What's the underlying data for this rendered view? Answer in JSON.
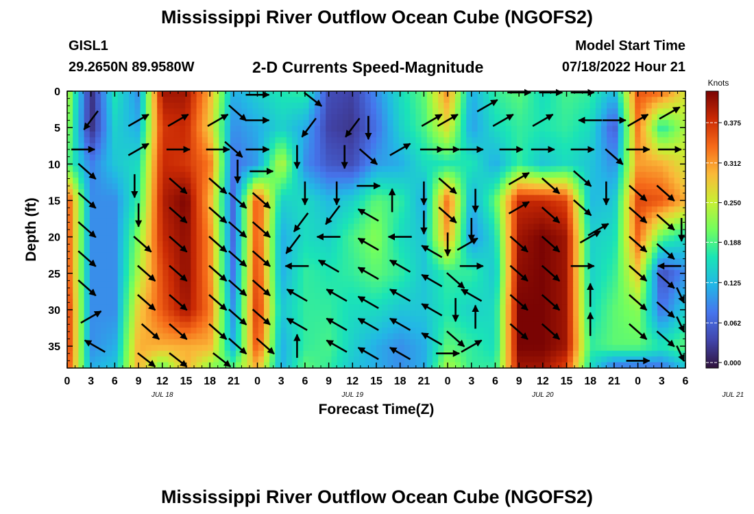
{
  "chart_data": {
    "type": "heatmap",
    "title": "Mississippi River Outflow Ocean Cube (NGOFS2)",
    "subtitle": "2-D Currents Speed-Magnitude",
    "station": "GISL1",
    "location": "29.2650N  89.9580W",
    "model_start_label": "Model Start Time",
    "model_start_value": "07/18/2022 Hour 21",
    "xlabel": "Forecast Time(Z)",
    "ylabel": "Depth (ft)",
    "x_tick_labels": [
      "0",
      "3",
      "6",
      "9",
      "12",
      "15",
      "18",
      "21",
      "0",
      "3",
      "6",
      "9",
      "12",
      "15",
      "18",
      "21",
      "0",
      "3",
      "6",
      "9",
      "12",
      "15",
      "18",
      "21",
      "0",
      "3",
      "6"
    ],
    "date_labels": [
      {
        "label": "JUL 18",
        "hour": 12
      },
      {
        "label": "JUL 19",
        "hour": 36
      },
      {
        "label": "JUL 20",
        "hour": 60
      },
      {
        "label": "JUL 21",
        "hour": 84
      }
    ],
    "xlim": [
      0,
      78
    ],
    "ylim": [
      0,
      38
    ],
    "y_reversed": true,
    "y_ticks": [
      0,
      5,
      10,
      15,
      20,
      25,
      30,
      35
    ],
    "colorbar": {
      "title": "Knots",
      "ticks": [
        "0.000",
        "0.062",
        "0.125",
        "0.188",
        "0.250",
        "0.312",
        "0.375"
      ],
      "range": [
        0,
        0.42
      ]
    },
    "speed_grid": {
      "hours": [
        0,
        3,
        6,
        9,
        12,
        15,
        18,
        21,
        24,
        27,
        30,
        33,
        36,
        39,
        42,
        45,
        48,
        51,
        54,
        57,
        60,
        63,
        66,
        69,
        72,
        75,
        78
      ],
      "depths": [
        0,
        5,
        10,
        15,
        20,
        25,
        30,
        35,
        38
      ],
      "values": [
        [
          0.25,
          0.02,
          0.17,
          0.1,
          0.4,
          0.4,
          0.3,
          0.12,
          0.15,
          0.17,
          0.18,
          0.05,
          0.04,
          0.1,
          0.16,
          0.2,
          0.32,
          0.12,
          0.18,
          0.2,
          0.16,
          0.19,
          0.18,
          0.13,
          0.35,
          0.34,
          0.26
        ],
        [
          0.23,
          0.02,
          0.15,
          0.12,
          0.37,
          0.38,
          0.28,
          0.1,
          0.12,
          0.15,
          0.12,
          0.04,
          0.03,
          0.08,
          0.15,
          0.19,
          0.27,
          0.11,
          0.16,
          0.18,
          0.17,
          0.18,
          0.16,
          0.06,
          0.33,
          0.17,
          0.24
        ],
        [
          0.2,
          0.09,
          0.14,
          0.16,
          0.38,
          0.37,
          0.33,
          0.08,
          0.11,
          0.25,
          0.1,
          0.06,
          0.05,
          0.11,
          0.12,
          0.16,
          0.17,
          0.17,
          0.12,
          0.18,
          0.14,
          0.16,
          0.14,
          0.1,
          0.31,
          0.3,
          0.26
        ],
        [
          0.36,
          0.1,
          0.1,
          0.18,
          0.39,
          0.42,
          0.3,
          0.07,
          0.36,
          0.15,
          0.16,
          0.13,
          0.15,
          0.2,
          0.18,
          0.12,
          0.34,
          0.12,
          0.2,
          0.38,
          0.38,
          0.36,
          0.13,
          0.14,
          0.36,
          0.35,
          0.3
        ],
        [
          0.36,
          0.1,
          0.1,
          0.22,
          0.38,
          0.41,
          0.32,
          0.07,
          0.36,
          0.12,
          0.16,
          0.15,
          0.19,
          0.22,
          0.16,
          0.14,
          0.31,
          0.1,
          0.16,
          0.4,
          0.42,
          0.4,
          0.15,
          0.16,
          0.34,
          0.2,
          0.16
        ],
        [
          0.36,
          0.1,
          0.1,
          0.24,
          0.36,
          0.41,
          0.32,
          0.08,
          0.37,
          0.12,
          0.18,
          0.17,
          0.18,
          0.2,
          0.18,
          0.14,
          0.18,
          0.18,
          0.14,
          0.41,
          0.42,
          0.4,
          0.15,
          0.18,
          0.28,
          0.05,
          0.1
        ],
        [
          0.38,
          0.1,
          0.1,
          0.28,
          0.35,
          0.4,
          0.33,
          0.1,
          0.38,
          0.14,
          0.18,
          0.18,
          0.16,
          0.16,
          0.14,
          0.14,
          0.17,
          0.15,
          0.16,
          0.42,
          0.42,
          0.4,
          0.16,
          0.2,
          0.22,
          0.08,
          0.15
        ],
        [
          0.38,
          0.1,
          0.12,
          0.3,
          0.3,
          0.3,
          0.3,
          0.12,
          0.36,
          0.12,
          0.18,
          0.19,
          0.15,
          0.12,
          0.1,
          0.12,
          0.2,
          0.18,
          0.16,
          0.42,
          0.42,
          0.4,
          0.18,
          0.2,
          0.2,
          0.17,
          0.2
        ],
        [
          0.36,
          0.12,
          0.14,
          0.3,
          0.2,
          0.3,
          0.22,
          0.2,
          0.3,
          0.12,
          0.2,
          0.18,
          0.14,
          0.12,
          0.1,
          0.12,
          0.24,
          0.18,
          0.18,
          0.4,
          0.4,
          0.36,
          0.16,
          0.08,
          0.08,
          0.08,
          0.14
        ]
      ]
    },
    "arrows": [
      {
        "h": 2,
        "d": 8,
        "dir": "E"
      },
      {
        "h": 3,
        "d": 4,
        "dir": "SW"
      },
      {
        "h": 2.5,
        "d": 11,
        "dir": "SE"
      },
      {
        "h": 2.5,
        "d": 15,
        "dir": "SE"
      },
      {
        "h": 2.5,
        "d": 19,
        "dir": "SE"
      },
      {
        "h": 2.5,
        "d": 23,
        "dir": "SE"
      },
      {
        "h": 2.5,
        "d": 27,
        "dir": "SE"
      },
      {
        "h": 3,
        "d": 31,
        "dir": "NE"
      },
      {
        "h": 3.5,
        "d": 35,
        "dir": "NW"
      },
      {
        "h": 9,
        "d": 4,
        "dir": "NE"
      },
      {
        "h": 9,
        "d": 8,
        "dir": "NE"
      },
      {
        "h": 8.5,
        "d": 13,
        "dir": "S"
      },
      {
        "h": 9,
        "d": 17,
        "dir": "S"
      },
      {
        "h": 9.5,
        "d": 21,
        "dir": "SE"
      },
      {
        "h": 10,
        "d": 25,
        "dir": "SE"
      },
      {
        "h": 10,
        "d": 29,
        "dir": "SE"
      },
      {
        "h": 10.5,
        "d": 33,
        "dir": "SE"
      },
      {
        "h": 10,
        "d": 37,
        "dir": "SE"
      },
      {
        "h": 14,
        "d": 4,
        "dir": "NE"
      },
      {
        "h": 14,
        "d": 8,
        "dir": "E"
      },
      {
        "h": 14,
        "d": 13,
        "dir": "SE"
      },
      {
        "h": 14,
        "d": 17,
        "dir": "SE"
      },
      {
        "h": 14,
        "d": 21,
        "dir": "SE"
      },
      {
        "h": 14,
        "d": 25,
        "dir": "SE"
      },
      {
        "h": 14,
        "d": 29,
        "dir": "SE"
      },
      {
        "h": 14,
        "d": 33,
        "dir": "SE"
      },
      {
        "h": 14,
        "d": 37,
        "dir": "SE"
      },
      {
        "h": 19,
        "d": 4,
        "dir": "NE"
      },
      {
        "h": 19,
        "d": 8,
        "dir": "E"
      },
      {
        "h": 19,
        "d": 13,
        "dir": "SE"
      },
      {
        "h": 19,
        "d": 17,
        "dir": "SE"
      },
      {
        "h": 19,
        "d": 21,
        "dir": "SE"
      },
      {
        "h": 19,
        "d": 25,
        "dir": "SE"
      },
      {
        "h": 19,
        "d": 29,
        "dir": "SE"
      },
      {
        "h": 19,
        "d": 33,
        "dir": "SE"
      },
      {
        "h": 19.5,
        "d": 37,
        "dir": "SE"
      },
      {
        "h": 21.5,
        "d": 3,
        "dir": "SE"
      },
      {
        "h": 21,
        "d": 8,
        "dir": "SE"
      },
      {
        "h": 21.5,
        "d": 11,
        "dir": "S"
      },
      {
        "h": 21.5,
        "d": 15,
        "dir": "SE"
      },
      {
        "h": 21.5,
        "d": 19,
        "dir": "SE"
      },
      {
        "h": 21.5,
        "d": 23,
        "dir": "SE"
      },
      {
        "h": 21.5,
        "d": 27,
        "dir": "SE"
      },
      {
        "h": 21.5,
        "d": 31,
        "dir": "SE"
      },
      {
        "h": 21.5,
        "d": 35,
        "dir": "SE"
      },
      {
        "h": 24,
        "d": 0.5,
        "dir": "E"
      },
      {
        "h": 24,
        "d": 4,
        "dir": "E"
      },
      {
        "h": 24,
        "d": 8,
        "dir": "E"
      },
      {
        "h": 24.5,
        "d": 11,
        "dir": "E"
      },
      {
        "h": 24.5,
        "d": 15,
        "dir": "SE"
      },
      {
        "h": 24.5,
        "d": 19,
        "dir": "SE"
      },
      {
        "h": 24.5,
        "d": 23,
        "dir": "SE"
      },
      {
        "h": 24.5,
        "d": 27,
        "dir": "SE"
      },
      {
        "h": 24.5,
        "d": 31,
        "dir": "SE"
      },
      {
        "h": 25,
        "d": 35,
        "dir": "SE"
      },
      {
        "h": 31,
        "d": 1,
        "dir": "SE"
      },
      {
        "h": 30.5,
        "d": 5,
        "dir": "SW"
      },
      {
        "h": 29,
        "d": 9,
        "dir": "S"
      },
      {
        "h": 30,
        "d": 14,
        "dir": "S"
      },
      {
        "h": 29.5,
        "d": 18,
        "dir": "SW"
      },
      {
        "h": 28.5,
        "d": 21,
        "dir": "SW"
      },
      {
        "h": 29,
        "d": 24,
        "dir": "W"
      },
      {
        "h": 29,
        "d": 28,
        "dir": "NW"
      },
      {
        "h": 29,
        "d": 32,
        "dir": "NW"
      },
      {
        "h": 29,
        "d": 35,
        "dir": "N"
      },
      {
        "h": 36,
        "d": 5,
        "dir": "SW"
      },
      {
        "h": 35,
        "d": 9,
        "dir": "S"
      },
      {
        "h": 34,
        "d": 14,
        "dir": "S"
      },
      {
        "h": 33.5,
        "d": 17,
        "dir": "SW"
      },
      {
        "h": 33,
        "d": 20,
        "dir": "W"
      },
      {
        "h": 33,
        "d": 24,
        "dir": "NW"
      },
      {
        "h": 34,
        "d": 28,
        "dir": "NW"
      },
      {
        "h": 34,
        "d": 32,
        "dir": "NW"
      },
      {
        "h": 34,
        "d": 35,
        "dir": "NW"
      },
      {
        "h": 38,
        "d": 5,
        "dir": "S"
      },
      {
        "h": 38,
        "d": 9,
        "dir": "SE"
      },
      {
        "h": 38,
        "d": 13,
        "dir": "E"
      },
      {
        "h": 38,
        "d": 17,
        "dir": "NW"
      },
      {
        "h": 38,
        "d": 21,
        "dir": "NW"
      },
      {
        "h": 38,
        "d": 25,
        "dir": "NW"
      },
      {
        "h": 38,
        "d": 29,
        "dir": "NW"
      },
      {
        "h": 38,
        "d": 32,
        "dir": "NW"
      },
      {
        "h": 38,
        "d": 36,
        "dir": "NW"
      },
      {
        "h": 42,
        "d": 8,
        "dir": "NE"
      },
      {
        "h": 41,
        "d": 15,
        "dir": "N"
      },
      {
        "h": 42,
        "d": 20,
        "dir": "W"
      },
      {
        "h": 42,
        "d": 24,
        "dir": "NW"
      },
      {
        "h": 42,
        "d": 28,
        "dir": "NW"
      },
      {
        "h": 42,
        "d": 32,
        "dir": "NW"
      },
      {
        "h": 42,
        "d": 36,
        "dir": "NW"
      },
      {
        "h": 46,
        "d": 4,
        "dir": "NE"
      },
      {
        "h": 46,
        "d": 8,
        "dir": "E"
      },
      {
        "h": 45,
        "d": 14,
        "dir": "S"
      },
      {
        "h": 45,
        "d": 18,
        "dir": "S"
      },
      {
        "h": 46,
        "d": 22,
        "dir": "NW"
      },
      {
        "h": 46,
        "d": 26,
        "dir": "NW"
      },
      {
        "h": 46,
        "d": 30,
        "dir": "NW"
      },
      {
        "h": 46,
        "d": 34,
        "dir": "NW"
      },
      {
        "h": 48,
        "d": 4,
        "dir": "NE"
      },
      {
        "h": 48,
        "d": 8,
        "dir": "E"
      },
      {
        "h": 48,
        "d": 13,
        "dir": "SE"
      },
      {
        "h": 48,
        "d": 17,
        "dir": "SE"
      },
      {
        "h": 48,
        "d": 21,
        "dir": "S"
      },
      {
        "h": 49,
        "d": 26,
        "dir": "SE"
      },
      {
        "h": 49,
        "d": 30,
        "dir": "S"
      },
      {
        "h": 49,
        "d": 34,
        "dir": "SE"
      },
      {
        "h": 48,
        "d": 36,
        "dir": "E"
      },
      {
        "h": 53,
        "d": 2,
        "dir": "NE"
      },
      {
        "h": 51,
        "d": 8,
        "dir": "E"
      },
      {
        "h": 51.5,
        "d": 15,
        "dir": "S"
      },
      {
        "h": 51,
        "d": 19,
        "dir": "S"
      },
      {
        "h": 50.5,
        "d": 21,
        "dir": "NE"
      },
      {
        "h": 51,
        "d": 24,
        "dir": "E"
      },
      {
        "h": 51,
        "d": 28,
        "dir": "NW"
      },
      {
        "h": 51.5,
        "d": 31,
        "dir": "N"
      },
      {
        "h": 51,
        "d": 35,
        "dir": "NE"
      },
      {
        "h": 57,
        "d": 0,
        "dir": "E"
      },
      {
        "h": 55,
        "d": 4,
        "dir": "NE"
      },
      {
        "h": 56,
        "d": 8,
        "dir": "E"
      },
      {
        "h": 57,
        "d": 12,
        "dir": "NE"
      },
      {
        "h": 57,
        "d": 16,
        "dir": "NE"
      },
      {
        "h": 57,
        "d": 21,
        "dir": "SE"
      },
      {
        "h": 57,
        "d": 25,
        "dir": "SE"
      },
      {
        "h": 57,
        "d": 29,
        "dir": "SE"
      },
      {
        "h": 57,
        "d": 33,
        "dir": "SE"
      },
      {
        "h": 61,
        "d": 0,
        "dir": "E"
      },
      {
        "h": 60,
        "d": 4,
        "dir": "NE"
      },
      {
        "h": 60,
        "d": 8,
        "dir": "E"
      },
      {
        "h": 61,
        "d": 13,
        "dir": "SE"
      },
      {
        "h": 61,
        "d": 17,
        "dir": "SE"
      },
      {
        "h": 61,
        "d": 21,
        "dir": "SE"
      },
      {
        "h": 61,
        "d": 25,
        "dir": "SE"
      },
      {
        "h": 61,
        "d": 29,
        "dir": "SE"
      },
      {
        "h": 61,
        "d": 33,
        "dir": "SE"
      },
      {
        "h": 65,
        "d": 0,
        "dir": "E"
      },
      {
        "h": 66,
        "d": 4,
        "dir": "W"
      },
      {
        "h": 65,
        "d": 8,
        "dir": "E"
      },
      {
        "h": 65,
        "d": 12,
        "dir": "SE"
      },
      {
        "h": 65,
        "d": 16,
        "dir": "SE"
      },
      {
        "h": 66,
        "d": 20,
        "dir": "NE"
      },
      {
        "h": 65,
        "d": 24,
        "dir": "E"
      },
      {
        "h": 66,
        "d": 28,
        "dir": "N"
      },
      {
        "h": 66,
        "d": 32,
        "dir": "N"
      },
      {
        "h": 69,
        "d": 4,
        "dir": "E"
      },
      {
        "h": 69,
        "d": 9,
        "dir": "SE"
      },
      {
        "h": 68,
        "d": 14,
        "dir": "S"
      },
      {
        "h": 67,
        "d": 19,
        "dir": "NE"
      },
      {
        "h": 72,
        "d": 4,
        "dir": "NE"
      },
      {
        "h": 72,
        "d": 8,
        "dir": "E"
      },
      {
        "h": 72,
        "d": 14,
        "dir": "SE"
      },
      {
        "h": 72,
        "d": 17,
        "dir": "SE"
      },
      {
        "h": 72,
        "d": 21,
        "dir": "SE"
      },
      {
        "h": 72,
        "d": 25,
        "dir": "SE"
      },
      {
        "h": 72,
        "d": 29,
        "dir": "SE"
      },
      {
        "h": 72,
        "d": 33,
        "dir": "SE"
      },
      {
        "h": 72,
        "d": 37,
        "dir": "E"
      },
      {
        "h": 76,
        "d": 3,
        "dir": "NE"
      },
      {
        "h": 76,
        "d": 8,
        "dir": "E"
      },
      {
        "h": 75.5,
        "d": 14,
        "dir": "SE"
      },
      {
        "h": 75.5,
        "d": 18,
        "dir": "SE"
      },
      {
        "h": 75.5,
        "d": 22,
        "dir": "SE"
      },
      {
        "h": 76,
        "d": 24,
        "dir": "W"
      },
      {
        "h": 75.5,
        "d": 26,
        "dir": "SE"
      },
      {
        "h": 75.5,
        "d": 30,
        "dir": "SE"
      },
      {
        "h": 75.5,
        "d": 34,
        "dir": "SE"
      },
      {
        "h": 77.5,
        "d": 19,
        "dir": "S"
      },
      {
        "h": 78,
        "d": 28,
        "dir": "SE"
      },
      {
        "h": 78,
        "d": 32,
        "dir": "SE"
      },
      {
        "h": 78,
        "d": 36,
        "dir": "SE"
      }
    ]
  },
  "bottom_title": "Mississippi River Outflow Ocean Cube (NGOFS2)"
}
